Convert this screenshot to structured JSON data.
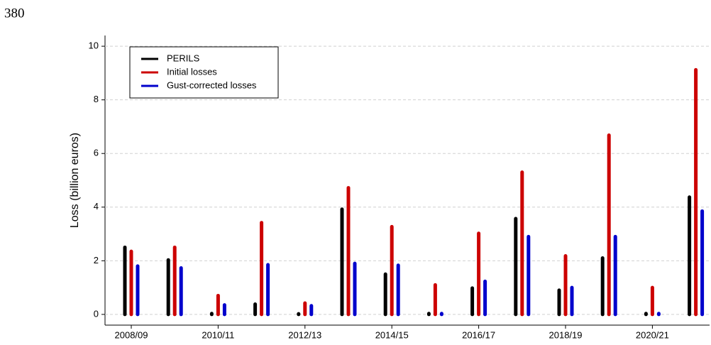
{
  "page_number": "380",
  "chart_data": {
    "type": "bar",
    "y_label": "Loss (billion euros)",
    "categories": [
      "2008/09",
      null,
      "2010/11",
      null,
      "2012/13",
      null,
      "2014/15",
      null,
      "2016/17",
      null,
      "2018/19",
      null,
      "2020/21",
      null
    ],
    "series": [
      {
        "name": "PERILS",
        "color": "#000000",
        "values": [
          2.5,
          2.03,
          0.03,
          0.38,
          0.02,
          3.92,
          1.5,
          0.03,
          0.98,
          3.57,
          0.9,
          2.1,
          0.03,
          4.37
        ]
      },
      {
        "name": "Initial losses",
        "color": "#cc0000",
        "values": [
          2.35,
          2.5,
          0.7,
          3.42,
          0.42,
          4.72,
          3.27,
          1.1,
          3.02,
          5.3,
          2.18,
          6.68,
          1.0,
          9.12
        ]
      },
      {
        "name": "Gust-corrected losses",
        "color": "#0000cc",
        "values": [
          1.8,
          1.73,
          0.35,
          1.85,
          0.32,
          1.9,
          1.83,
          0.03,
          1.23,
          2.9,
          1.0,
          2.9,
          0.03,
          3.85
        ]
      }
    ],
    "ylim": [
      -0.4,
      10.4
    ],
    "yticks": [
      0,
      2,
      4,
      6,
      8,
      10
    ],
    "grid": true,
    "legend": "upper left"
  }
}
